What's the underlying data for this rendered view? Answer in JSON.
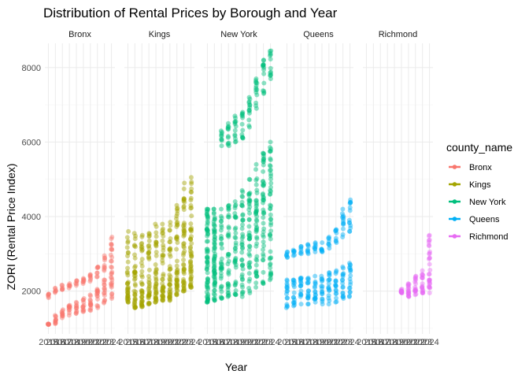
{
  "chart_data": {
    "type": "scatter",
    "title": "Distribution of Rental Prices by Borough and Year",
    "xlabel": "Year",
    "ylabel": "ZORI (Rental Price Index)",
    "facet_var": "county_name",
    "legend_title": "county_name",
    "legend_position": "right",
    "grid": true,
    "ylim": [
      850,
      8650
    ],
    "xlim": [
      2014.5,
      2024.5
    ],
    "y_ticks": [
      2000,
      4000,
      6000,
      8000
    ],
    "x_ticks": [
      2015,
      2016,
      2017,
      2018,
      2019,
      2020,
      2021,
      2022,
      2023,
      2024
    ],
    "panels": [
      {
        "name": "Bronx",
        "color": "#F8766D",
        "years": [
          2015,
          2016,
          2017,
          2018,
          2019,
          2020,
          2021,
          2022,
          2023,
          2024
        ],
        "upper_range": [
          [
            1820,
            1920
          ],
          [
            1960,
            2080
          ],
          [
            2040,
            2160
          ],
          [
            2080,
            2200
          ],
          [
            2150,
            2280
          ],
          [
            2200,
            2340
          ],
          [
            2260,
            2440
          ],
          [
            2380,
            2650
          ],
          [
            2550,
            2950
          ],
          [
            2800,
            3450
          ]
        ],
        "lower_range": [
          [
            1100,
            1120
          ],
          [
            1120,
            1350
          ],
          [
            1280,
            1500
          ],
          [
            1350,
            1620
          ],
          [
            1400,
            1700
          ],
          [
            1450,
            1800
          ],
          [
            1480,
            1900
          ],
          [
            1550,
            2050
          ],
          [
            1680,
            2300
          ],
          [
            1800,
            2650
          ]
        ]
      },
      {
        "name": "Kings",
        "color": "#A3A500",
        "years": [
          2015,
          2016,
          2017,
          2018,
          2019,
          2020,
          2021,
          2022,
          2023,
          2024
        ],
        "upper_range": [
          [
            1700,
            3600
          ],
          [
            1550,
            3550
          ],
          [
            1580,
            3500
          ],
          [
            1650,
            3550
          ],
          [
            1700,
            3800
          ],
          [
            1750,
            3800
          ],
          [
            1750,
            3850
          ],
          [
            1900,
            4300
          ],
          [
            2000,
            4900
          ],
          [
            2100,
            5050
          ]
        ],
        "lower_range": [
          [
            1700,
            2100
          ],
          [
            1550,
            2000
          ],
          [
            1580,
            2000
          ],
          [
            1650,
            2100
          ],
          [
            1700,
            2200
          ],
          [
            1750,
            2200
          ],
          [
            1750,
            2300
          ],
          [
            1900,
            2500
          ],
          [
            2000,
            2600
          ],
          [
            2100,
            2800
          ]
        ]
      },
      {
        "name": "New York",
        "color": "#00BF7D",
        "years": [
          2015,
          2016,
          2017,
          2018,
          2019,
          2020,
          2021,
          2022,
          2023,
          2024
        ],
        "upper_range": [
          [
            1700,
            4200
          ],
          [
            1750,
            4200
          ],
          [
            5900,
            6300
          ],
          [
            5900,
            6500
          ],
          [
            6000,
            6700
          ],
          [
            6100,
            6800
          ],
          [
            6400,
            7200
          ],
          [
            6900,
            7700
          ],
          [
            7300,
            8200
          ],
          [
            7700,
            8450
          ]
        ],
        "lower_range": [
          [
            1700,
            4200
          ],
          [
            1750,
            4200
          ],
          [
            1800,
            4200
          ],
          [
            1850,
            4300
          ],
          [
            1900,
            4400
          ],
          [
            1850,
            4700
          ],
          [
            1950,
            5000
          ],
          [
            2100,
            5400
          ],
          [
            2200,
            5700
          ],
          [
            2300,
            6000
          ]
        ]
      },
      {
        "name": "Queens",
        "color": "#00B0F6",
        "years": [
          2015,
          2016,
          2017,
          2018,
          2019,
          2020,
          2021,
          2022,
          2023,
          2024
        ],
        "upper_range": [
          [
            2900,
            3050
          ],
          [
            2950,
            3100
          ],
          [
            3000,
            3200
          ],
          [
            3000,
            3250
          ],
          [
            3050,
            3300
          ],
          [
            3050,
            3300
          ],
          [
            3150,
            3450
          ],
          [
            3300,
            3650
          ],
          [
            3450,
            4200
          ],
          [
            3600,
            4450
          ]
        ],
        "lower_range": [
          [
            1550,
            2300
          ],
          [
            1600,
            2300
          ],
          [
            1650,
            2350
          ],
          [
            1650,
            2350
          ],
          [
            1700,
            2400
          ],
          [
            1650,
            2400
          ],
          [
            1650,
            2500
          ],
          [
            1700,
            2550
          ],
          [
            1800,
            2650
          ],
          [
            1850,
            2750
          ]
        ]
      },
      {
        "name": "Richmond",
        "color": "#E76BF3",
        "years": [
          2020,
          2021,
          2022,
          2023,
          2024
        ],
        "upper_range": [
          [
            1950,
            2050
          ],
          [
            2050,
            2200
          ],
          [
            2200,
            2400
          ],
          [
            2350,
            2550
          ],
          [
            2450,
            3500
          ]
        ],
        "lower_range": [
          [
            1950,
            2000
          ],
          [
            1850,
            2000
          ],
          [
            1900,
            2100
          ],
          [
            1950,
            2200
          ],
          [
            1950,
            2300
          ]
        ]
      }
    ]
  }
}
